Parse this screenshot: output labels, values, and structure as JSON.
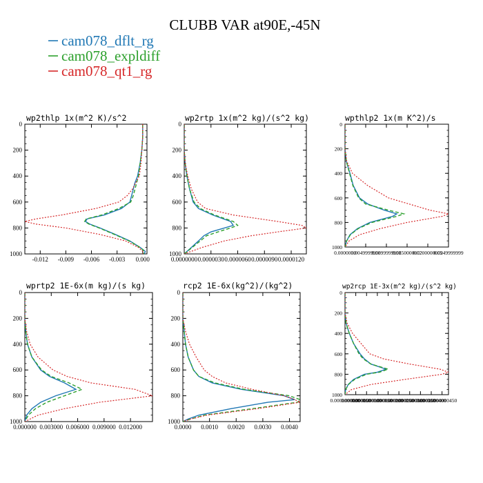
{
  "figure_title": "CLUBB VAR at90E,-45N",
  "legend": [
    {
      "label": "cam078_dflt_rg",
      "color": "#1f77b4",
      "style": "solid"
    },
    {
      "label": "cam078_expldiff",
      "color": "#2ca02c",
      "style": "dashed"
    },
    {
      "label": "cam078_qt1_rg",
      "color": "#d62728",
      "style": "dotted"
    }
  ],
  "chart_data": [
    {
      "type": "line",
      "title": "wp2thlp  1x(m^2 K)/s^2",
      "xlim": [
        -0.0138,
        0.0005
      ],
      "xticks": [
        -0.012,
        -0.009,
        -0.006,
        -0.003,
        0.0
      ],
      "xticklabels": [
        "-0.012",
        "-0.009",
        "-0.006",
        "-0.003",
        "0.000"
      ],
      "ylim": [
        1000,
        0
      ],
      "yticks": [
        0,
        200,
        400,
        600,
        800,
        1000
      ],
      "yticklabels": [
        "0",
        "200",
        "400",
        "600",
        "800",
        "1000"
      ],
      "y": [
        0,
        100,
        200,
        300,
        400,
        450,
        500,
        550,
        600,
        650,
        700,
        730,
        750,
        770,
        800,
        850,
        900,
        950,
        980,
        1000
      ],
      "series": [
        {
          "name": "cam078_dflt_rg",
          "values": [
            0.0,
            0.0,
            -0.0001,
            -0.0003,
            -0.0006,
            -0.0009,
            -0.0011,
            -0.0013,
            -0.0015,
            -0.0025,
            -0.0045,
            -0.0065,
            -0.0067,
            -0.0062,
            -0.005,
            -0.0032,
            -0.0015,
            -0.0003,
            0.0003,
            0.0002
          ]
        },
        {
          "name": "cam078_expldiff",
          "values": [
            0.0,
            0.0,
            -0.0001,
            -0.0003,
            -0.0005,
            -0.0007,
            -0.0009,
            -0.0011,
            -0.0014,
            -0.0028,
            -0.0048,
            -0.0066,
            -0.0068,
            -0.0063,
            -0.0051,
            -0.0033,
            -0.0016,
            -0.0003,
            0.0002,
            0.0001
          ]
        },
        {
          "name": "cam078_qt1_rg",
          "values": [
            0.0,
            0.0,
            -0.0001,
            -0.0002,
            -0.0004,
            -0.0008,
            -0.0012,
            -0.0018,
            -0.0028,
            -0.0055,
            -0.0095,
            -0.0125,
            -0.0138,
            -0.0125,
            -0.009,
            -0.005,
            -0.002,
            -0.0005,
            0.0,
            0.0
          ]
        }
      ]
    },
    {
      "type": "line",
      "title": "wp2rtp  1x(m^2 kg)/(s^2 kg)",
      "xlim": [
        0.0,
        1.37e-05
      ],
      "xticks": [
        0.0,
        3e-06,
        6e-06,
        9e-06,
        1.2e-05
      ],
      "xticklabels": [
        "0.0000000",
        "0.0000030",
        "0.0000060",
        "0.0000090",
        "0.0000120"
      ],
      "ylim": [
        1000,
        0
      ],
      "yticks": [
        0,
        200,
        400,
        600,
        800,
        1000
      ],
      "yticklabels": [
        "0",
        "200",
        "400",
        "600",
        "800",
        "1000"
      ],
      "y": [
        0,
        200,
        300,
        400,
        500,
        600,
        650,
        700,
        750,
        780,
        800,
        830,
        860,
        900,
        950,
        1000
      ],
      "series": [
        {
          "name": "cam078_dflt_rg",
          "values": [
            0.0,
            0.0,
            1e-07,
            3e-07,
            6e-07,
            1e-06,
            1.6e-06,
            3.2e-06,
            5.2e-06,
            5.5e-06,
            4.5e-06,
            3e-06,
            2.2e-06,
            1.6e-06,
            8e-07,
            0.0
          ]
        },
        {
          "name": "cam078_expldiff",
          "values": [
            0.0,
            0.0,
            1e-07,
            3e-07,
            6e-07,
            1.1e-06,
            1.8e-06,
            3.4e-06,
            5.5e-06,
            6e-06,
            5.2e-06,
            3.8e-06,
            2.5e-06,
            1.8e-06,
            9e-07,
            0.0
          ]
        },
        {
          "name": "cam078_qt1_rg",
          "values": [
            0.0,
            0.0,
            1e-07,
            4e-07,
            8e-07,
            1.5e-06,
            2.4e-06,
            5.5e-06,
            1.05e-05,
            1.32e-05,
            1.37e-05,
            1.05e-05,
            7.5e-06,
            4.5e-06,
            2e-06,
            0.0
          ]
        }
      ]
    },
    {
      "type": "line",
      "title": "wpthlp2  1x(m K^2)/s",
      "xlim": [
        0.0,
        0.025
      ],
      "xticks": [
        0.0,
        0.005,
        0.01,
        0.015,
        0.02,
        0.025
      ],
      "xticklabels": [
        "0.0000000",
        "0.0049999998",
        "0.0099999998",
        "0.0150000002",
        "0.0200000009",
        "0.0249999999"
      ],
      "ylim": [
        1000,
        0
      ],
      "yticks": [
        0,
        200,
        400,
        600,
        800,
        1000
      ],
      "yticklabels": [
        "0",
        "200",
        "400",
        "600",
        "800",
        "1000"
      ],
      "y": [
        0,
        200,
        300,
        400,
        500,
        600,
        650,
        700,
        730,
        750,
        800,
        850,
        900,
        950,
        1000
      ],
      "series": [
        {
          "name": "cam078_dflt_rg",
          "values": [
            0.0,
            0.0,
            0.0003,
            0.0012,
            0.002,
            0.0035,
            0.0055,
            0.0095,
            0.0125,
            0.0115,
            0.006,
            0.003,
            0.0012,
            0.0004,
            0.0
          ]
        },
        {
          "name": "cam078_expldiff",
          "values": [
            0.0,
            0.0,
            0.0003,
            0.0011,
            0.0019,
            0.0033,
            0.005,
            0.0105,
            0.0142,
            0.0125,
            0.0065,
            0.0032,
            0.0013,
            0.0004,
            0.0
          ]
        },
        {
          "name": "cam078_qt1_rg",
          "values": [
            0.0,
            0.0,
            0.0004,
            0.0018,
            0.0055,
            0.0105,
            0.0155,
            0.0205,
            0.025,
            0.0235,
            0.015,
            0.0085,
            0.0035,
            0.001,
            0.0
          ]
        }
      ]
    },
    {
      "type": "line",
      "title": "wprtp2  1E-6x(m kg)/(s kg)",
      "xlim": [
        0.0,
        0.0145
      ],
      "xticks": [
        0.0,
        0.003,
        0.006,
        0.009,
        0.012
      ],
      "xticklabels": [
        "0.000000",
        "0.003000",
        "0.006000",
        "0.009000",
        "0.012000"
      ],
      "ylim": [
        1000,
        0
      ],
      "yticks": [
        0,
        200,
        400,
        600,
        800,
        1000
      ],
      "yticklabels": [
        "0",
        "200",
        "400",
        "600",
        "800",
        "1000"
      ],
      "y": [
        0,
        200,
        300,
        400,
        500,
        600,
        650,
        700,
        750,
        800,
        850,
        900,
        950,
        1000
      ],
      "series": [
        {
          "name": "cam078_dflt_rg",
          "values": [
            0.0,
            0.0,
            0.0001,
            0.0003,
            0.0008,
            0.0018,
            0.0028,
            0.0045,
            0.0058,
            0.0035,
            0.0018,
            0.0008,
            0.0002,
            0.0
          ]
        },
        {
          "name": "cam078_expldiff",
          "values": [
            0.0,
            0.0,
            0.0001,
            0.0003,
            0.0008,
            0.0019,
            0.003,
            0.005,
            0.0065,
            0.0045,
            0.0025,
            0.0012,
            0.0004,
            0.0
          ]
        },
        {
          "name": "cam078_qt1_rg",
          "values": [
            0.0,
            0.0,
            0.0002,
            0.0006,
            0.0015,
            0.0032,
            0.0048,
            0.0075,
            0.0125,
            0.0145,
            0.0085,
            0.0045,
            0.0015,
            0.0
          ]
        }
      ]
    },
    {
      "type": "line",
      "title": "rcp2  1E-6x(kg^2)/(kg^2)",
      "xlim": [
        0.0,
        0.0044
      ],
      "xticks": [
        0.0,
        0.001,
        0.002,
        0.003,
        0.004
      ],
      "xticklabels": [
        "0.0000",
        "0.0010",
        "0.0020",
        "0.0030",
        "0.0040"
      ],
      "ylim": [
        1000,
        0
      ],
      "yticks": [
        0,
        200,
        400,
        600,
        800,
        1000
      ],
      "yticklabels": [
        "0",
        "200",
        "400",
        "600",
        "800",
        "1000"
      ],
      "y": [
        0,
        200,
        300,
        400,
        500,
        600,
        650,
        700,
        750,
        800,
        830,
        850,
        900,
        950,
        980,
        1000
      ],
      "series": [
        {
          "name": "cam078_dflt_rg",
          "values": [
            0.0,
            0.0,
            5e-05,
            0.0001,
            0.0002,
            0.0004,
            0.0006,
            0.0011,
            0.0022,
            0.0038,
            0.0042,
            0.0032,
            0.0018,
            0.0006,
            0.0002,
            0.0
          ]
        },
        {
          "name": "cam078_expldiff",
          "values": [
            0.0,
            0.0,
            5e-05,
            0.0001,
            0.0002,
            0.0004,
            0.0006,
            0.0012,
            0.0023,
            0.004,
            0.0044,
            0.0043,
            0.0026,
            0.0008,
            0.0003,
            0.0
          ]
        },
        {
          "name": "cam078_qt1_rg",
          "values": [
            0.0,
            0.0,
            0.0001,
            0.00025,
            0.0005,
            0.0008,
            0.0011,
            0.0016,
            0.0026,
            0.0038,
            0.0042,
            0.0044,
            0.0028,
            0.0009,
            0.0003,
            0.0
          ]
        }
      ]
    },
    {
      "type": "line",
      "title": "wp2rcp  1E-3x(m^2 kg)/(s^2 kg)",
      "xlim": [
        0.0,
        4.8e-08
      ],
      "xticks": [
        0.0,
        5e-09,
        1e-08,
        1.5e-08,
        2e-08,
        2.5e-08,
        3e-08,
        3.5e-08,
        4e-08,
        4.5e-08
      ],
      "xticklabels": [
        "0.0000000000",
        "0.0000000050",
        "0.0000000100",
        "0.0000000150",
        "0.0000000200",
        "0.0000000250",
        "0.0000000300",
        "0.0000000350",
        "0.0000000400",
        "0.0000000450"
      ],
      "ylim": [
        1000,
        0
      ],
      "yticks": [
        0,
        200,
        400,
        600,
        800,
        1000
      ],
      "yticklabels": [
        "0",
        "200",
        "400",
        "600",
        "800",
        "1000"
      ],
      "y": [
        0,
        200,
        300,
        400,
        500,
        600,
        650,
        700,
        750,
        780,
        800,
        850,
        900,
        950,
        1000
      ],
      "series": [
        {
          "name": "cam078_dflt_rg",
          "values": [
            0.0,
            0.0,
            5e-10,
            2e-09,
            4e-09,
            7e-09,
            9e-09,
            1.2e-08,
            1.9e-08,
            1.5e-08,
            9e-09,
            4e-09,
            1.5e-09,
            3e-10,
            0.0
          ]
        },
        {
          "name": "cam078_expldiff",
          "values": [
            0.0,
            0.0,
            5e-10,
            2e-09,
            4e-09,
            6.5e-09,
            8.5e-09,
            1.2e-08,
            2e-08,
            1.6e-08,
            1e-08,
            4.5e-09,
            1.6e-09,
            3e-10,
            0.0
          ]
        },
        {
          "name": "cam078_qt1_rg",
          "values": [
            0.0,
            0.0,
            1e-09,
            3.5e-09,
            7.5e-09,
            1.15e-08,
            1.8e-08,
            3e-08,
            4.4e-08,
            4.8e-08,
            4.5e-08,
            2.8e-08,
            1.2e-08,
            3e-09,
            0.0
          ]
        }
      ]
    }
  ]
}
